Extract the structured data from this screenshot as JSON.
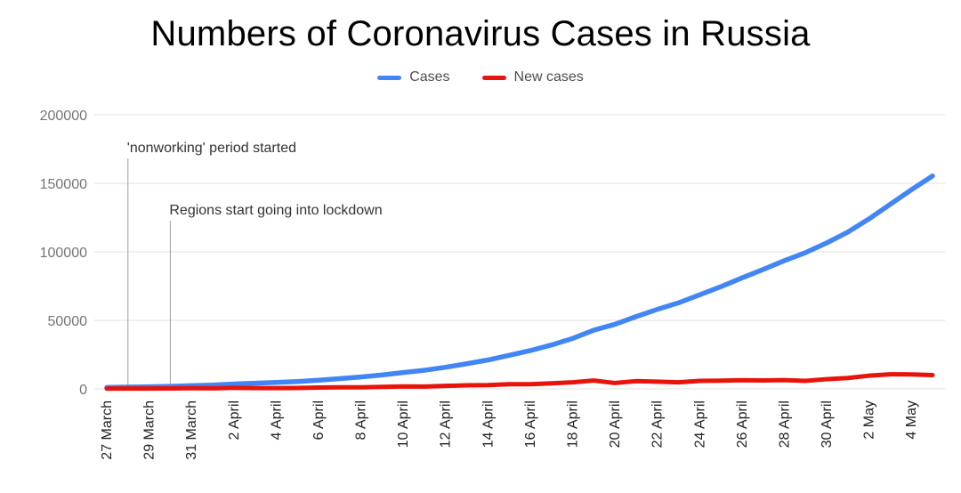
{
  "page": {
    "background": "#ffffff"
  },
  "title": "Numbers of Coronavirus Cases in Russia",
  "chart_data": {
    "type": "line",
    "title": "Numbers of Coronavirus Cases in Russia",
    "grid": true,
    "legend_position": "top",
    "ylim": [
      0,
      200000
    ],
    "yticks": [
      0,
      50000,
      100000,
      150000,
      200000
    ],
    "x_tick_step": 2,
    "x": [
      "27 March",
      "28 March",
      "29 March",
      "30 March",
      "31 March",
      "1 April",
      "2 April",
      "3 April",
      "4 April",
      "5 April",
      "6 April",
      "7 April",
      "8 April",
      "9 April",
      "10 April",
      "11 April",
      "12 April",
      "13 April",
      "14 April",
      "15 April",
      "16 April",
      "17 April",
      "18 April",
      "19 April",
      "20 April",
      "21 April",
      "22 April",
      "23 April",
      "24 April",
      "25 April",
      "26 April",
      "27 April",
      "28 April",
      "29 April",
      "30 April",
      "1 May",
      "2 May",
      "3 May",
      "4 May",
      "5 May"
    ],
    "series": [
      {
        "name": "Cases",
        "color": "#4285f4",
        "width": 5.5,
        "values": [
          1036,
          1264,
          1534,
          1836,
          2337,
          2777,
          3548,
          4149,
          4731,
          5389,
          6343,
          7497,
          8672,
          10131,
          11917,
          13584,
          15770,
          18328,
          21102,
          24490,
          27938,
          32008,
          36793,
          42853,
          47121,
          52763,
          57999,
          62773,
          68622,
          74588,
          80949,
          87147,
          93558,
          99399,
          106498,
          114431,
          124054,
          134687,
          145268,
          155370
        ]
      },
      {
        "name": "New cases",
        "color": "#e8130a",
        "width": 5,
        "values": [
          196,
          228,
          270,
          302,
          501,
          440,
          771,
          601,
          582,
          658,
          954,
          1154,
          1175,
          1459,
          1786,
          1667,
          2186,
          2558,
          2774,
          3388,
          3448,
          4070,
          4785,
          6060,
          4268,
          5642,
          5236,
          4774,
          5849,
          5966,
          6361,
          6198,
          6411,
          5841,
          7099,
          7933,
          9623,
          10633,
          10581,
          10102
        ]
      }
    ],
    "annotations": [
      {
        "text": "'nonworking' period started",
        "x": "28 March",
        "line_top": 178,
        "text_baseline": 171
      },
      {
        "text": "Regions start going into lockdown",
        "x": "30 March",
        "line_top": 248,
        "text_baseline": 241
      }
    ],
    "colors": {
      "grid": "#e0e0e0",
      "y_labels": "#757575",
      "x_labels": "#222222",
      "annotation_line": "#9e9e9e",
      "annotation_text": "#333333"
    }
  }
}
